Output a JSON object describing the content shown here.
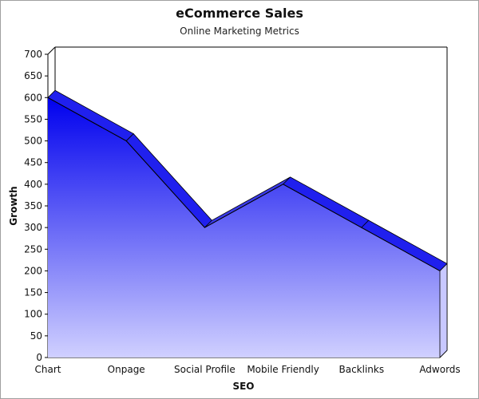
{
  "chart_data": {
    "type": "area",
    "title": "eCommerce Sales",
    "subtitle": "Online Marketing Metrics",
    "xlabel": "SEO",
    "ylabel": "Growth",
    "categories": [
      "Chart",
      "Onpage",
      "Social Profile",
      "Mobile Friendly",
      "Backlinks",
      "Adwords"
    ],
    "series": [
      {
        "values": [
          600,
          500,
          300,
          400,
          300,
          200
        ]
      }
    ],
    "ylim": [
      0,
      700
    ],
    "yticks": [
      0,
      50,
      100,
      150,
      200,
      250,
      300,
      350,
      400,
      450,
      500,
      550,
      600,
      650,
      700
    ],
    "grid": false,
    "legend": "none",
    "style": "3d",
    "colors": {
      "fill_top": "#0000ee",
      "fill_bottom": "#d0d0ff",
      "ridge": "#3333ff"
    }
  }
}
